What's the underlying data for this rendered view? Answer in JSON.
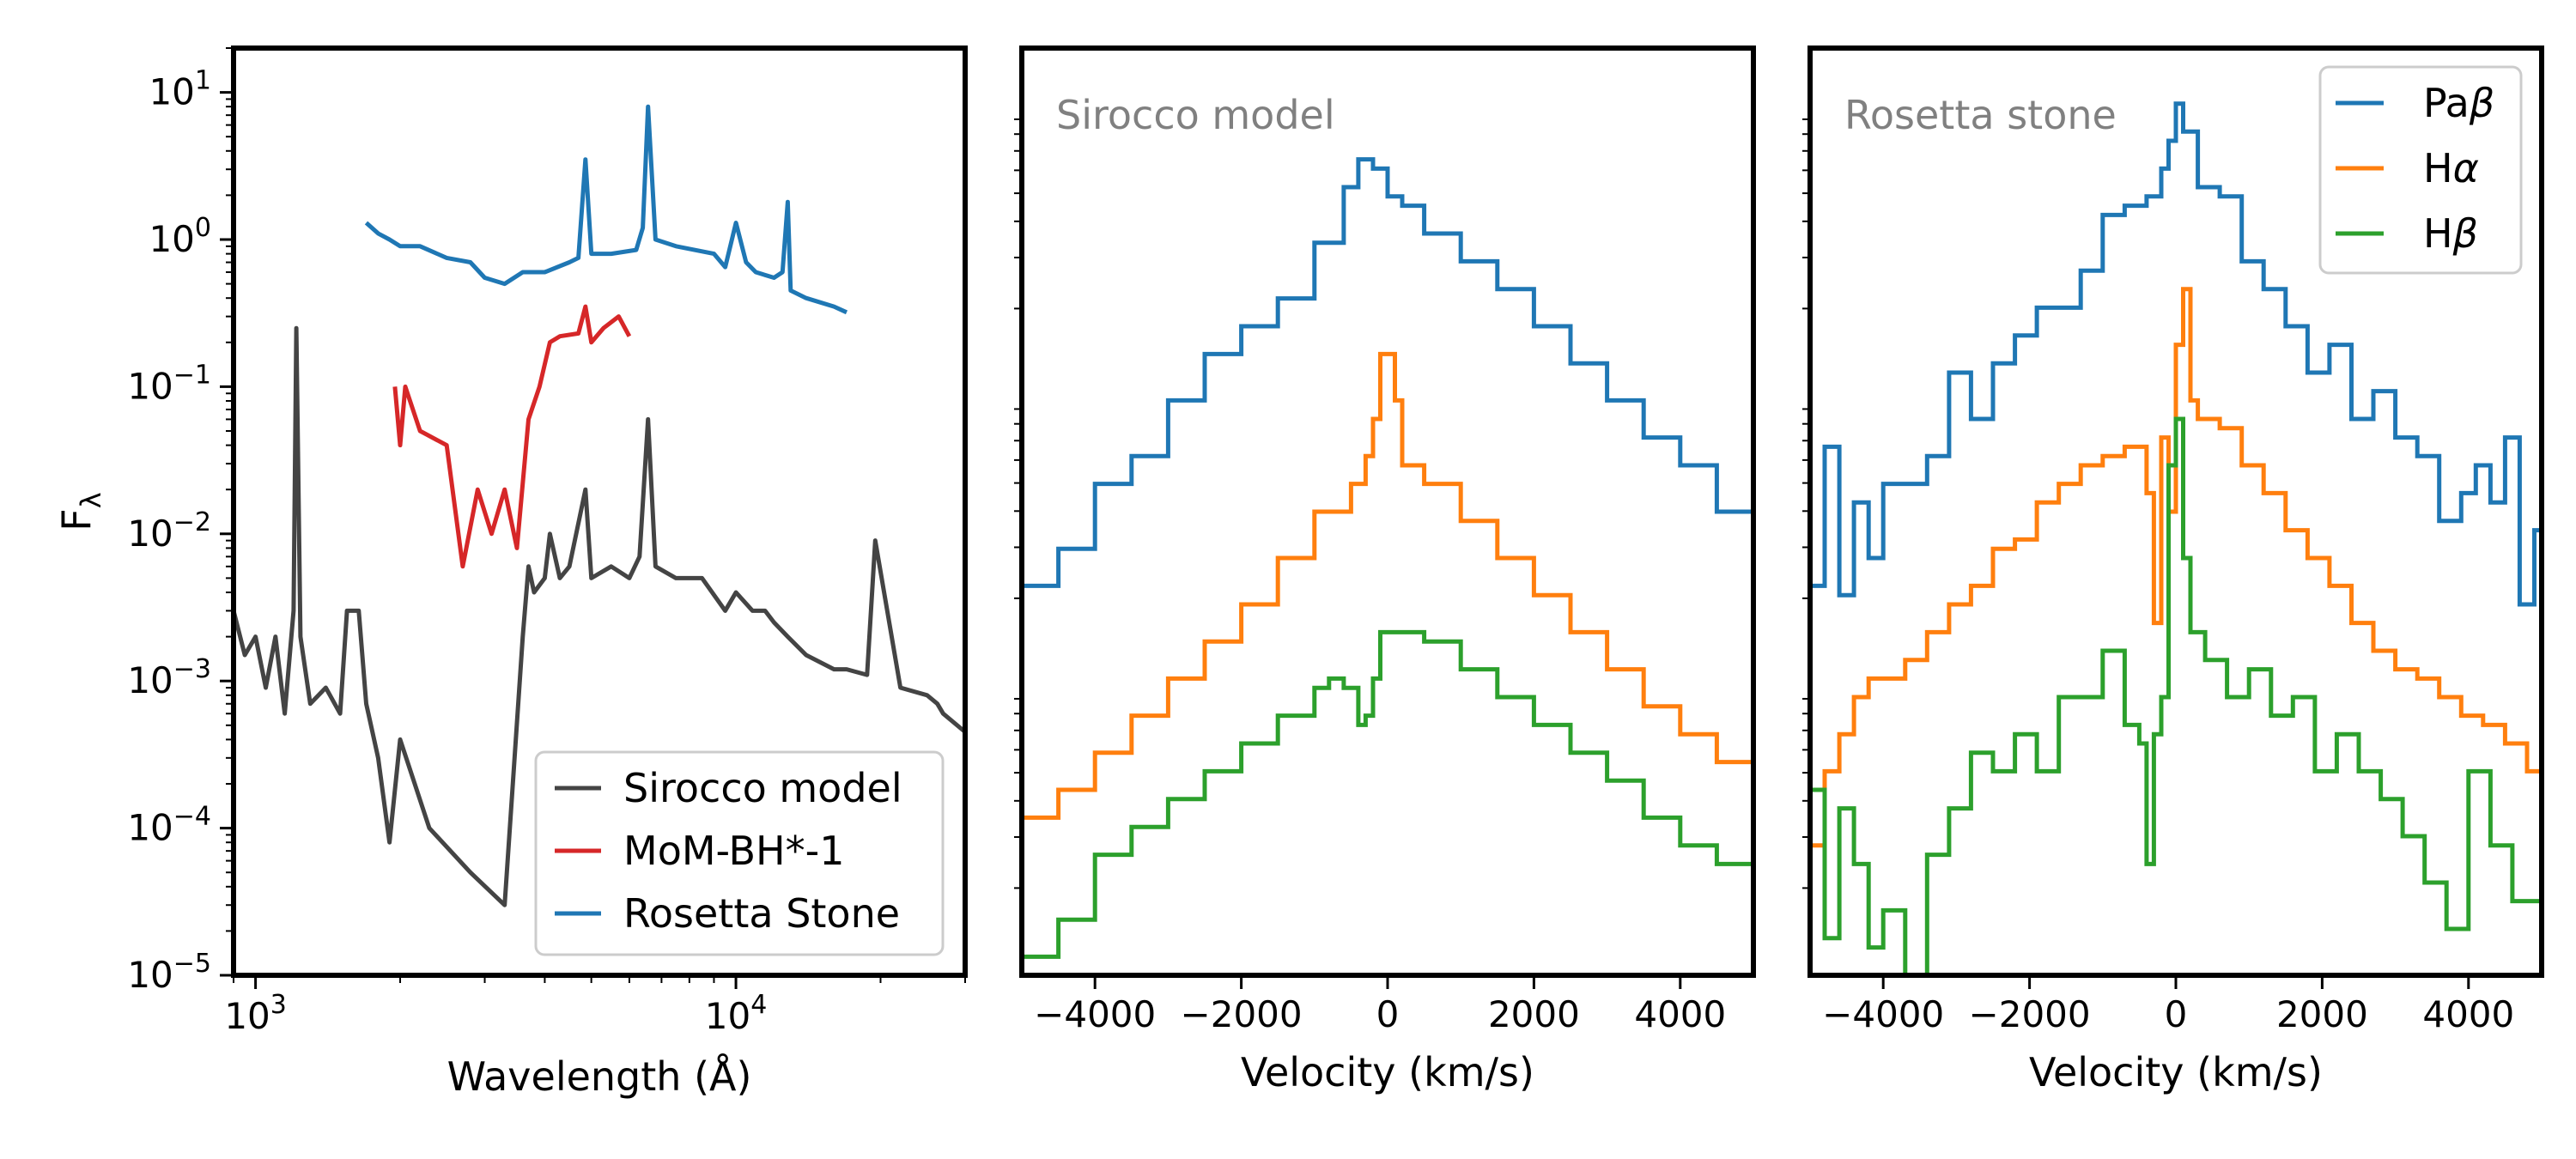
{
  "chart_data": [
    {
      "type": "line",
      "panel": "left",
      "xscale": "log",
      "yscale": "log",
      "xlabel": "Wavelength (Å)",
      "ylabel": "F",
      "ylabel_sub": "λ",
      "xlim": [
        900,
        30000
      ],
      "ylim": [
        1e-05,
        20
      ],
      "x_ticks": [
        {
          "base": "10",
          "exp": "3",
          "value": 1000
        },
        {
          "base": "10",
          "exp": "4",
          "value": 10000
        }
      ],
      "y_ticks": [
        {
          "base": "10",
          "exp": "1",
          "value": 10
        },
        {
          "base": "10",
          "exp": "0",
          "value": 1
        },
        {
          "base": "10",
          "exp": "−1",
          "value": 0.1
        },
        {
          "base": "10",
          "exp": "−2",
          "value": 0.01
        },
        {
          "base": "10",
          "exp": "−3",
          "value": 0.001
        },
        {
          "base": "10",
          "exp": "−4",
          "value": 0.0001
        },
        {
          "base": "10",
          "exp": "−5",
          "value": 1e-05
        }
      ],
      "legend_position": "lower-right",
      "series": [
        {
          "name": "Sirocco model",
          "color": "#444444",
          "x": [
            900,
            950,
            1000,
            1050,
            1100,
            1150,
            1200,
            1216,
            1240,
            1300,
            1400,
            1500,
            1550,
            1640,
            1700,
            1800,
            1900,
            2000,
            2300,
            2800,
            3300,
            3600,
            3700,
            3800,
            4000,
            4100,
            4300,
            4500,
            4861,
            5000,
            5500,
            6000,
            6300,
            6563,
            6800,
            7500,
            8500,
            9500,
            10000,
            10830,
            11500,
            12000,
            12818,
            14000,
            16000,
            17000,
            18751,
            19500,
            22000,
            25000,
            26260,
            27000,
            30000
          ],
          "y": [
            0.003,
            0.0015,
            0.002,
            0.0009,
            0.002,
            0.0006,
            0.003,
            0.25,
            0.002,
            0.0007,
            0.0009,
            0.0006,
            0.003,
            0.003,
            0.0007,
            0.0003,
            8e-05,
            0.0004,
            0.0001,
            5e-05,
            3e-05,
            0.002,
            0.006,
            0.004,
            0.005,
            0.01,
            0.005,
            0.006,
            0.02,
            0.005,
            0.006,
            0.005,
            0.007,
            0.06,
            0.006,
            0.005,
            0.005,
            0.003,
            0.004,
            0.003,
            0.003,
            0.0025,
            0.002,
            0.0015,
            0.0012,
            0.0012,
            0.0011,
            0.009,
            0.0009,
            0.0008,
            0.0007,
            0.0006,
            0.00045
          ]
        },
        {
          "name": "MoM-BH*-1",
          "color": "#d62728",
          "x": [
            1950,
            2000,
            2050,
            2200,
            2500,
            2700,
            2900,
            3100,
            3300,
            3500,
            3700,
            3900,
            4100,
            4300,
            4700,
            4861,
            5000,
            5300,
            5700,
            6000
          ],
          "y": [
            0.1,
            0.04,
            0.1,
            0.05,
            0.04,
            0.006,
            0.02,
            0.01,
            0.02,
            0.008,
            0.06,
            0.1,
            0.2,
            0.22,
            0.23,
            0.35,
            0.2,
            0.25,
            0.3,
            0.22
          ]
        },
        {
          "name": "Rosetta Stone",
          "color": "#1f77b4",
          "x": [
            1700,
            1800,
            1900,
            2000,
            2200,
            2500,
            2800,
            3000,
            3300,
            3600,
            4000,
            4500,
            4700,
            4861,
            5000,
            5500,
            6200,
            6400,
            6563,
            6800,
            7500,
            9000,
            9500,
            10000,
            10500,
            11000,
            12000,
            12500,
            12818,
            13000,
            14000,
            16000,
            17000
          ],
          "y": [
            1.3,
            1.1,
            1.0,
            0.9,
            0.9,
            0.75,
            0.7,
            0.55,
            0.5,
            0.6,
            0.6,
            0.7,
            0.75,
            3.5,
            0.8,
            0.8,
            0.85,
            1.2,
            8.0,
            1.0,
            0.9,
            0.8,
            0.65,
            1.3,
            0.7,
            0.6,
            0.55,
            0.6,
            1.8,
            0.45,
            0.4,
            0.35,
            0.32
          ]
        }
      ]
    },
    {
      "type": "line",
      "panel": "middle",
      "step": true,
      "title": "Sirocco model",
      "xlabel": "Velocity (km/s)",
      "xlim": [
        -5000,
        5000
      ],
      "ylim": [
        0,
        100
      ],
      "x_ticks": [
        {
          "label": "−4000",
          "value": -4000
        },
        {
          "label": "−2000",
          "value": -2000
        },
        {
          "label": "0",
          "value": 0
        },
        {
          "label": "2000",
          "value": 2000
        },
        {
          "label": "4000",
          "value": 4000
        }
      ],
      "series": [
        {
          "name": "Paβ",
          "color": "#1f77b4",
          "x": [
            -5000,
            -4500,
            -4000,
            -3500,
            -3000,
            -2500,
            -2000,
            -1500,
            -1000,
            -600,
            -400,
            -300,
            -200,
            0,
            200,
            500,
            1000,
            1500,
            2000,
            2500,
            3000,
            3500,
            4000,
            4500,
            5000
          ],
          "y": [
            42,
            46,
            53,
            56,
            62,
            67,
            70,
            73,
            79,
            85,
            88,
            88,
            87,
            84,
            83,
            80,
            77,
            74,
            70,
            66,
            62,
            58,
            55,
            50,
            48
          ]
        },
        {
          "name": "Hα",
          "color": "#ff7f0e",
          "x": [
            -5000,
            -4500,
            -4000,
            -3500,
            -3000,
            -2500,
            -2000,
            -1500,
            -1000,
            -500,
            -300,
            -200,
            -100,
            0,
            100,
            200,
            500,
            1000,
            1500,
            2000,
            2500,
            3000,
            3500,
            4000,
            4500,
            5000
          ],
          "y": [
            17,
            20,
            24,
            28,
            32,
            36,
            40,
            45,
            50,
            53,
            56,
            60,
            67,
            67,
            62,
            55,
            53,
            49,
            45,
            41,
            37,
            33,
            29,
            26,
            23,
            20
          ]
        },
        {
          "name": "Hβ",
          "color": "#2ca02c",
          "x": [
            -5000,
            -4500,
            -4000,
            -3500,
            -3000,
            -2500,
            -2000,
            -1500,
            -1000,
            -800,
            -600,
            -400,
            -300,
            -200,
            -100,
            0,
            500,
            1000,
            1500,
            2000,
            2500,
            3000,
            3500,
            4000,
            4500,
            5000
          ],
          "y": [
            2,
            6,
            13,
            16,
            19,
            22,
            25,
            28,
            31,
            32,
            31,
            27,
            28,
            32,
            37,
            37,
            36,
            33,
            30,
            27,
            24,
            21,
            17,
            14,
            12,
            9
          ]
        }
      ]
    },
    {
      "type": "line",
      "panel": "right",
      "step": true,
      "title": "Rosetta stone",
      "xlabel": "Velocity (km/s)",
      "xlim": [
        -5000,
        5000
      ],
      "ylim": [
        0,
        100
      ],
      "x_ticks": [
        {
          "label": "−4000",
          "value": -4000
        },
        {
          "label": "−2000",
          "value": -2000
        },
        {
          "label": "0",
          "value": 0
        },
        {
          "label": "2000",
          "value": 2000
        },
        {
          "label": "4000",
          "value": 4000
        }
      ],
      "legend_position": "top-right",
      "series": [
        {
          "name": "Paβ",
          "color": "#1f77b4",
          "x": [
            -5000,
            -4800,
            -4600,
            -4400,
            -4200,
            -4000,
            -3700,
            -3400,
            -3100,
            -2800,
            -2500,
            -2200,
            -1900,
            -1600,
            -1300,
            -1000,
            -700,
            -400,
            -200,
            -100,
            0,
            100,
            300,
            600,
            900,
            1200,
            1500,
            1800,
            2100,
            2400,
            2700,
            3000,
            3300,
            3600,
            3900,
            4100,
            4300,
            4500,
            4700,
            4900,
            5000
          ],
          "y": [
            42,
            57,
            41,
            51,
            45,
            53,
            53,
            56,
            65,
            60,
            66,
            69,
            72,
            72,
            76,
            82,
            83,
            84,
            87,
            90,
            94,
            91,
            85,
            84,
            77,
            74,
            70,
            65,
            68,
            60,
            63,
            58,
            56,
            49,
            52,
            55,
            51,
            58,
            40,
            48,
            45
          ]
        },
        {
          "name": "Hα",
          "color": "#ff7f0e",
          "x": [
            -5000,
            -4800,
            -4600,
            -4400,
            -4200,
            -4000,
            -3700,
            -3400,
            -3100,
            -2800,
            -2500,
            -2200,
            -1900,
            -1600,
            -1300,
            -1000,
            -700,
            -400,
            -300,
            -200,
            -100,
            0,
            100,
            200,
            300,
            600,
            900,
            1200,
            1500,
            1800,
            2100,
            2400,
            2700,
            3000,
            3300,
            3600,
            3900,
            4200,
            4500,
            4800,
            5000
          ],
          "y": [
            14,
            22,
            26,
            30,
            32,
            32,
            34,
            37,
            40,
            42,
            46,
            47,
            51,
            53,
            55,
            56,
            57,
            52,
            38,
            58,
            50,
            68,
            74,
            62,
            60,
            59,
            55,
            52,
            48,
            45,
            42,
            38,
            35,
            33,
            32,
            30,
            28,
            27,
            25,
            22,
            20
          ]
        },
        {
          "name": "Hβ",
          "color": "#2ca02c",
          "x": [
            -5000,
            -4800,
            -4600,
            -4400,
            -4200,
            -4000,
            -3700,
            -3400,
            -3100,
            -2800,
            -2500,
            -2200,
            -1900,
            -1600,
            -1300,
            -1000,
            -700,
            -500,
            -400,
            -300,
            -200,
            -100,
            0,
            100,
            200,
            400,
            700,
            1000,
            1300,
            1600,
            1900,
            2200,
            2500,
            2800,
            3100,
            3400,
            3700,
            4000,
            4300,
            4600,
            5000
          ],
          "y": [
            20,
            4,
            18,
            12,
            3,
            7,
            0,
            13,
            18,
            24,
            22,
            26,
            22,
            30,
            30,
            35,
            27,
            25,
            12,
            26,
            30,
            55,
            60,
            45,
            37,
            34,
            30,
            33,
            28,
            30,
            22,
            26,
            22,
            19,
            15,
            10,
            5,
            22,
            14,
            8,
            20
          ]
        }
      ]
    }
  ]
}
